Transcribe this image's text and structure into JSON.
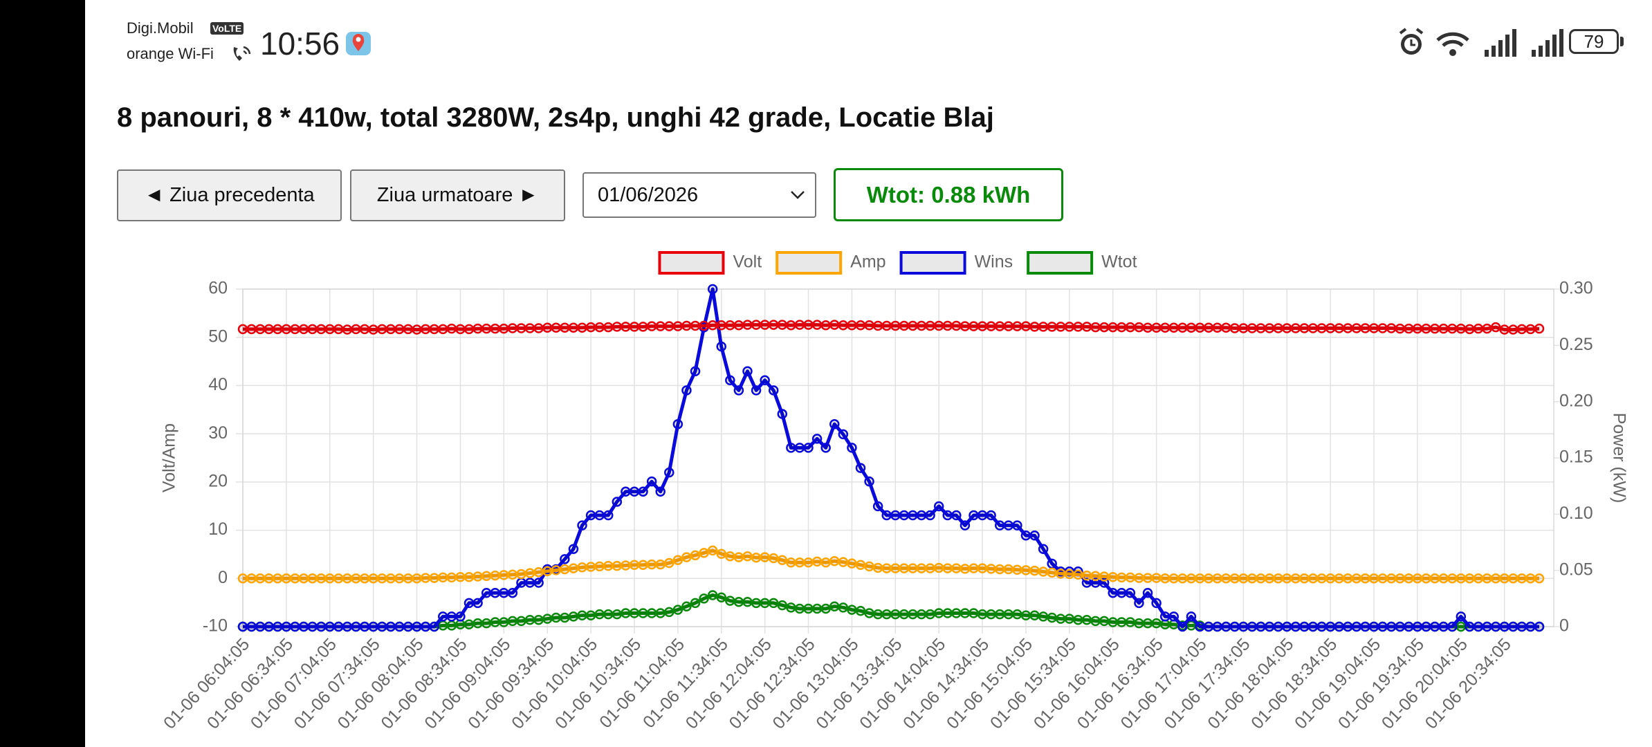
{
  "status_bar": {
    "carrier": "Digi.Mobil",
    "volte": "VoLTE",
    "wifi": "orange Wi-Fi",
    "time": "10:56",
    "battery": "79"
  },
  "header": {
    "title": "8 panouri, 8 * 410w, total 3280W, 2s4p, unghi 42 grade, Locatie Blaj"
  },
  "controls": {
    "prev": "◄ Ziua precedenta",
    "next": "Ziua urmatoare ►",
    "date": "01/06/2026",
    "total": "Wtot: 0.88 kWh"
  },
  "chart_data": {
    "type": "line",
    "y_label": "Volt/Amp",
    "y2_label": "Power (kW)",
    "legend": "top",
    "grid": true,
    "ylim": [
      -10,
      60
    ],
    "yticks": [
      -10,
      0,
      10,
      20,
      30,
      40,
      50,
      60
    ],
    "y2lim": [
      0,
      0.3
    ],
    "y2ticks": [
      0,
      0.05,
      {
        "value": 0.1,
        "label": "0.10"
      },
      0.15,
      {
        "value": 0.2,
        "label": "0.20"
      },
      0.25,
      {
        "value": 0.3,
        "label": "0.30"
      }
    ],
    "categories": [
      "01-06 06:04:05",
      null,
      null,
      null,
      null,
      "01-06 06:34:05",
      null,
      null,
      null,
      null,
      "01-06 07:04:05",
      null,
      null,
      null,
      null,
      "01-06 07:34:05",
      null,
      null,
      null,
      null,
      "01-06 08:04:05",
      null,
      null,
      null,
      null,
      "01-06 08:34:05",
      null,
      null,
      null,
      null,
      "01-06 09:04:05",
      null,
      null,
      null,
      null,
      "01-06 09:34:05",
      null,
      null,
      null,
      null,
      "01-06 10:04:05",
      null,
      null,
      null,
      null,
      "01-06 10:34:05",
      null,
      null,
      null,
      null,
      "01-06 11:04:05",
      null,
      null,
      null,
      null,
      "01-06 11:34:05",
      null,
      null,
      null,
      null,
      "01-06 12:04:05",
      null,
      null,
      null,
      null,
      "01-06 12:34:05",
      null,
      null,
      null,
      null,
      "01-06 13:04:05",
      null,
      null,
      null,
      null,
      "01-06 13:34:05",
      null,
      null,
      null,
      null,
      "01-06 14:04:05",
      null,
      null,
      null,
      null,
      "01-06 14:34:05",
      null,
      null,
      null,
      null,
      "01-06 15:04:05",
      null,
      null,
      null,
      null,
      "01-06 15:34:05",
      null,
      null,
      null,
      null,
      "01-06 16:04:05",
      null,
      null,
      null,
      null,
      "01-06 16:34:05",
      null,
      null,
      null,
      null,
      "01-06 17:04:05",
      null,
      null,
      null,
      null,
      "01-06 17:34:05",
      null,
      null,
      null,
      null,
      "01-06 18:04:05",
      null,
      null,
      null,
      null,
      "01-06 18:34:05",
      null,
      null,
      null,
      null,
      "01-06 19:04:05",
      null,
      null,
      null,
      null,
      "01-06 19:34:05",
      null,
      null,
      null,
      null,
      "01-06 20:04:05",
      null,
      null,
      null,
      null,
      "01-06 20:34:05",
      null,
      null,
      null,
      null
    ],
    "series": [
      {
        "name": "Volt",
        "color": "#e8000b",
        "axis": "y",
        "values": [
          51.7,
          51.7,
          51.7,
          51.7,
          51.7,
          51.7,
          51.7,
          51.7,
          51.7,
          51.7,
          51.7,
          51.7,
          51.6,
          51.7,
          51.7,
          51.6,
          51.7,
          51.7,
          51.7,
          51.7,
          51.6,
          51.7,
          51.7,
          51.7,
          51.8,
          51.7,
          51.7,
          51.8,
          51.8,
          51.8,
          51.8,
          51.9,
          51.9,
          51.9,
          51.9,
          52,
          52,
          52,
          52,
          52,
          52.1,
          52.1,
          52.1,
          52.2,
          52.2,
          52.2,
          52.2,
          52.3,
          52.3,
          52.3,
          52.3,
          52.4,
          52.4,
          52.4,
          52.5,
          52.5,
          52.5,
          52.5,
          52.6,
          52.6,
          52.6,
          52.6,
          52.6,
          52.5,
          52.6,
          52.6,
          52.6,
          52.5,
          52.6,
          52.5,
          52.5,
          52.5,
          52.5,
          52.4,
          52.4,
          52.4,
          52.4,
          52.4,
          52.4,
          52.4,
          52.4,
          52.4,
          52.4,
          52.3,
          52.3,
          52.3,
          52.3,
          52.3,
          52.3,
          52.3,
          52.3,
          52.2,
          52.2,
          52.2,
          52.2,
          52.2,
          52.2,
          52.2,
          52.1,
          52.1,
          52.1,
          52.1,
          52.1,
          52.1,
          52,
          52,
          52,
          52,
          52,
          52,
          52,
          52,
          52,
          52,
          51.9,
          51.9,
          51.9,
          51.9,
          51.9,
          51.9,
          51.9,
          51.9,
          51.9,
          51.9,
          51.9,
          51.9,
          51.9,
          51.9,
          51.9,
          51.9,
          51.9,
          51.9,
          51.9,
          51.8,
          51.8,
          51.8,
          51.8,
          51.8,
          51.8,
          51.8,
          51.8,
          51.7,
          51.8,
          51.8,
          52.1,
          51.6,
          51.6,
          51.7,
          51.7,
          51.8
        ]
      },
      {
        "name": "Amp",
        "color": "#ffa500",
        "axis": "y",
        "values": [
          0,
          0,
          0,
          0,
          0,
          0,
          0,
          0,
          0,
          0,
          0,
          0,
          0,
          0,
          0,
          0,
          0,
          0,
          0,
          0,
          0,
          0.1,
          0.1,
          0.2,
          0.2,
          0.3,
          0.3,
          0.4,
          0.5,
          0.6,
          0.7,
          0.8,
          0.9,
          1.1,
          1.3,
          1.5,
          1.7,
          1.9,
          2.1,
          2.3,
          2.4,
          2.5,
          2.6,
          2.6,
          2.7,
          2.8,
          2.8,
          2.9,
          2.9,
          3.2,
          3.8,
          4.4,
          4.8,
          5.3,
          5.8,
          5.1,
          4.6,
          4.4,
          4.6,
          4.3,
          4.4,
          4.2,
          3.8,
          3.3,
          3.3,
          3.3,
          3.5,
          3.3,
          3.6,
          3.4,
          3.1,
          2.8,
          2.5,
          2.2,
          2.1,
          2.1,
          2.1,
          2.1,
          2.1,
          2.1,
          2.2,
          2.1,
          2.1,
          2,
          2.1,
          2.1,
          2,
          1.9,
          1.9,
          1.8,
          1.7,
          1.6,
          1.4,
          1.2,
          1,
          0.9,
          0.8,
          0.6,
          0.5,
          0.4,
          0.3,
          0.2,
          0.2,
          0.1,
          0.1,
          0.1,
          0,
          0,
          0,
          0,
          0,
          0,
          0,
          0,
          0,
          0,
          0,
          0,
          0,
          0,
          0,
          0,
          0,
          0,
          0,
          0,
          0,
          0,
          0,
          0,
          0,
          0,
          0,
          0,
          0,
          0,
          0,
          0,
          0,
          0,
          0,
          0,
          0,
          0,
          0,
          0,
          0,
          0,
          0,
          0
        ]
      },
      {
        "name": "Wins",
        "color": "#0a0adc",
        "axis": "y2",
        "values": [
          0,
          0,
          0,
          0,
          0,
          0,
          0,
          0,
          0,
          0,
          0,
          0,
          0,
          0,
          0,
          0,
          0,
          0,
          0,
          0,
          0,
          0,
          0,
          0.009,
          0.009,
          0.009,
          0.021,
          0.021,
          0.03,
          0.03,
          0.03,
          0.03,
          0.039,
          0.039,
          0.039,
          0.051,
          0.051,
          0.06,
          0.069,
          0.09,
          0.099,
          0.099,
          0.099,
          0.111,
          0.12,
          0.12,
          0.12,
          0.129,
          0.12,
          0.137,
          0.18,
          0.21,
          0.227,
          0.266,
          0.3,
          0.249,
          0.219,
          0.21,
          0.227,
          0.21,
          0.219,
          0.21,
          0.189,
          0.159,
          0.159,
          0.159,
          0.167,
          0.159,
          0.18,
          0.171,
          0.159,
          0.141,
          0.129,
          0.107,
          0.099,
          0.099,
          0.099,
          0.099,
          0.099,
          0.099,
          0.107,
          0.099,
          0.099,
          0.09,
          0.099,
          0.099,
          0.099,
          0.09,
          0.09,
          0.09,
          0.081,
          0.081,
          0.069,
          0.056,
          0.049,
          0.049,
          0.049,
          0.039,
          0.039,
          0.039,
          0.03,
          0.03,
          0.03,
          0.021,
          0.03,
          0.021,
          0.009,
          0.009,
          0,
          0.009,
          0,
          0,
          0,
          0,
          0,
          0,
          0,
          0,
          0,
          0,
          0,
          0,
          0,
          0,
          0,
          0,
          0,
          0,
          0,
          0,
          0,
          0,
          0,
          0,
          0,
          0,
          0,
          0,
          0,
          0,
          0.009,
          0,
          0,
          0,
          0,
          0,
          0,
          0,
          0,
          0
        ]
      },
      {
        "name": "Wtot",
        "color": "#0a8a0a",
        "axis": "y2",
        "values": [
          0,
          0,
          0,
          0,
          0,
          0,
          0,
          0,
          0,
          0,
          0,
          0,
          0,
          0,
          0,
          0,
          0,
          0,
          0,
          0,
          0,
          0,
          0,
          0.001,
          0.001,
          0.002,
          0.002,
          0.003,
          0.003,
          0.004,
          0.004,
          0.005,
          0.005,
          0.006,
          0.006,
          0.007,
          0.008,
          0.008,
          0.009,
          0.01,
          0.01,
          0.011,
          0.011,
          0.011,
          0.012,
          0.012,
          0.012,
          0.012,
          0.012,
          0.013,
          0.015,
          0.018,
          0.021,
          0.025,
          0.028,
          0.026,
          0.023,
          0.022,
          0.022,
          0.021,
          0.021,
          0.021,
          0.019,
          0.017,
          0.016,
          0.016,
          0.016,
          0.016,
          0.018,
          0.017,
          0.015,
          0.014,
          0.012,
          0.011,
          0.011,
          0.011,
          0.011,
          0.011,
          0.011,
          0.011,
          0.012,
          0.012,
          0.012,
          0.012,
          0.012,
          0.011,
          0.011,
          0.011,
          0.011,
          0.011,
          0.01,
          0.01,
          0.009,
          0.008,
          0.007,
          0.007,
          0.006,
          0.006,
          0.005,
          0.005,
          0.004,
          0.004,
          0.004,
          0.003,
          0.003,
          0.003,
          0.002,
          0.002,
          0.001,
          0.001,
          0.001,
          0,
          0,
          0,
          0,
          0,
          0,
          0,
          0,
          0,
          0,
          0,
          0,
          0,
          0,
          0,
          0,
          0,
          0,
          0,
          0,
          0,
          0,
          0,
          0,
          0,
          0,
          0,
          0,
          0,
          0,
          0,
          0,
          0,
          0,
          0,
          0,
          0,
          0,
          0
        ]
      }
    ]
  }
}
